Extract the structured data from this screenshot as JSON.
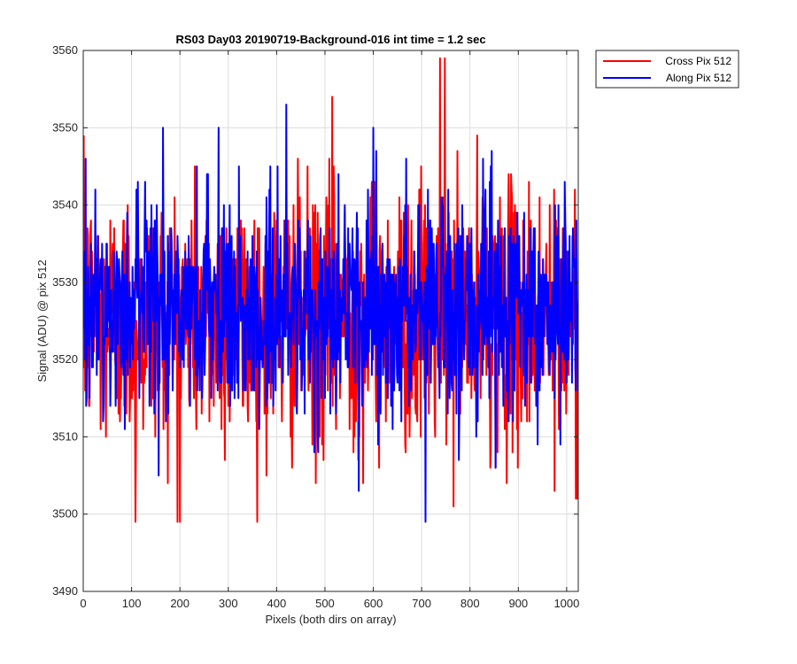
{
  "chart_data": {
    "type": "line",
    "title": "RS03 Day03 20190719-Background-016 int time = 1.2 sec",
    "xlabel": "Pixels (both dirs on array)",
    "ylabel": "Signal (ADU) @ pix 512",
    "xlim": [
      0,
      1024
    ],
    "ylim": [
      3490,
      3560
    ],
    "xticks": [
      "0",
      "100",
      "200",
      "300",
      "400",
      "500",
      "600",
      "700",
      "800",
      "900",
      "1000"
    ],
    "yticks": [
      "3490",
      "3500",
      "3510",
      "3520",
      "3530",
      "3540",
      "3550",
      "3560"
    ],
    "grid": true,
    "legend_position": "outside-top-right",
    "series": [
      {
        "name": "Cross Pix 512",
        "color": "#ff0000",
        "noisy": true,
        "mean": 3525.5,
        "std": 8.5,
        "min": 3499,
        "max": 3559,
        "x_start": 1,
        "x_end": 1024,
        "key_points": [
          [
            108,
            3499
          ],
          [
            200,
            3499
          ],
          [
            515,
            3554
          ],
          [
            738,
            3559
          ],
          [
            748,
            3559
          ],
          [
            1019,
            3502
          ],
          [
            975,
            3503
          ]
        ]
      },
      {
        "name": "Along Pix 512",
        "color": "#0000ff",
        "noisy": true,
        "mean": 3526.5,
        "std": 7,
        "min": 3499,
        "max": 3553,
        "x_start": 1,
        "x_end": 1024,
        "key_points": [
          [
            165,
            3550
          ],
          [
            280,
            3550
          ],
          [
            420,
            3553
          ],
          [
            600,
            3550
          ],
          [
            708,
            3499
          ],
          [
            570,
            3503
          ],
          [
            5,
            3546
          ]
        ]
      }
    ]
  }
}
